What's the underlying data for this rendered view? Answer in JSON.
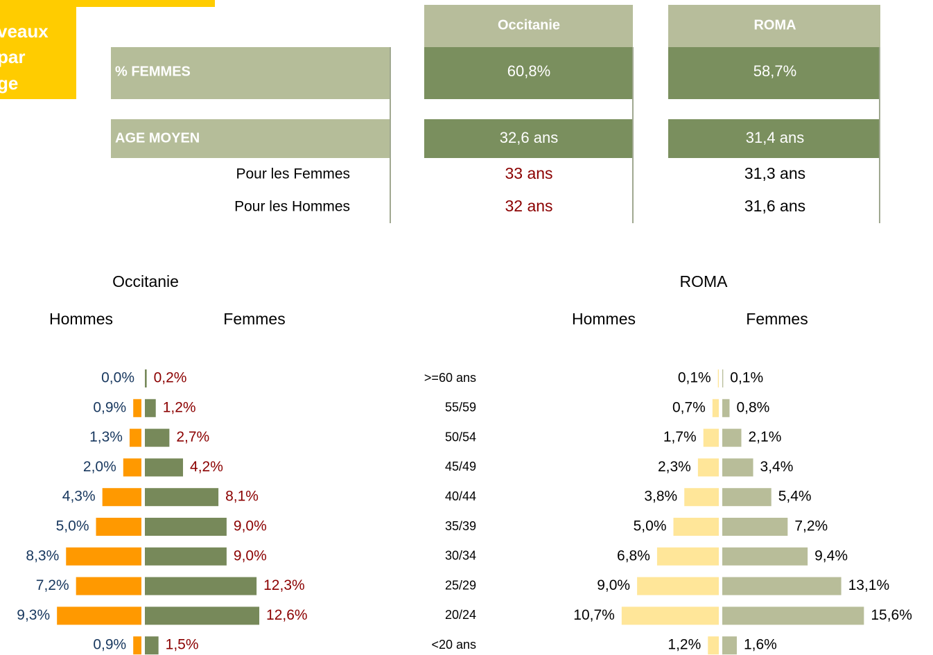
{
  "header": {
    "title": [
      "veaux",
      "par",
      "ge"
    ]
  },
  "table": {
    "columns": [
      "Occitanie",
      "ROMA"
    ],
    "rows": [
      {
        "label": "% FEMMES",
        "cells": [
          "60,8%",
          "58,7%"
        ]
      },
      {
        "label": "AGE MOYEN",
        "cells": [
          "32,6 ans",
          "31,4 ans"
        ]
      },
      {
        "label": "Pour les Femmes",
        "cells": [
          "33 ans",
          "31,3 ans"
        ]
      },
      {
        "label": "Pour les Hommes",
        "cells": [
          "32 ans",
          "31,6 ans"
        ]
      }
    ]
  },
  "chart_data": [
    {
      "type": "pyramid",
      "title": "Occitanie",
      "categories": [
        ">=60 ans",
        "55/59",
        "50/54",
        "45/49",
        "40/44",
        "35/39",
        "30/34",
        "25/29",
        "20/24",
        "<20 ans"
      ],
      "series": [
        {
          "name": "Hommes",
          "color": "#ff9900",
          "label_color": "#17375e",
          "values": [
            0.0,
            0.9,
            1.3,
            2.0,
            4.3,
            5.0,
            8.3,
            7.2,
            9.3,
            0.9
          ],
          "value_labels": [
            "0,0%",
            "0,9%",
            "1,3%",
            "2,0%",
            "4,3%",
            "5,0%",
            "8,3%",
            "7,2%",
            "9,3%",
            "0,9%"
          ]
        },
        {
          "name": "Femmes",
          "color": "#77895a",
          "label_color": "#8b0000",
          "values": [
            0.2,
            1.2,
            2.7,
            4.2,
            8.1,
            9.0,
            9.0,
            12.3,
            12.6,
            1.5
          ],
          "value_labels": [
            "0,2%",
            "1,2%",
            "2,7%",
            "4,2%",
            "8,1%",
            "9,0%",
            "9,0%",
            "12,3%",
            "12,6%",
            "1,5%"
          ]
        }
      ]
    },
    {
      "type": "pyramid",
      "title": "ROMA",
      "series": [
        {
          "name": "Hommes",
          "color": "#ffe699",
          "label_color": "#000000",
          "values": [
            0.1,
            0.7,
            1.7,
            2.3,
            3.8,
            5.0,
            6.8,
            9.0,
            10.7,
            1.2
          ],
          "value_labels": [
            "0,1%",
            "0,7%",
            "1,7%",
            "2,3%",
            "3,8%",
            "5,0%",
            "6,8%",
            "9,0%",
            "10,7%",
            "1,2%"
          ]
        },
        {
          "name": "Femmes",
          "color": "#b8bd99",
          "label_color": "#000000",
          "values": [
            0.1,
            0.8,
            2.1,
            3.4,
            5.4,
            7.2,
            9.4,
            13.1,
            15.6,
            1.6
          ],
          "value_labels": [
            "0,1%",
            "0,8%",
            "2,1%",
            "3,4%",
            "5,4%",
            "7,2%",
            "9,4%",
            "13,1%",
            "15,6%",
            "1,6%"
          ]
        }
      ]
    }
  ]
}
